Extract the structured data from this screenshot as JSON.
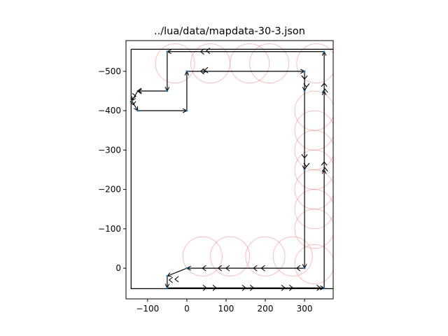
{
  "chart_data": {
    "type": "line",
    "title": "../lua/data/mapdata-30-3.json",
    "xlabel": "",
    "ylabel": "",
    "xlim": [
      -155,
      373
    ],
    "ylim": [
      78,
      -578
    ],
    "y_inverted": true,
    "grid": false,
    "x_ticks": [
      -100,
      0,
      100,
      200,
      300
    ],
    "x_tick_labels": [
      "−100",
      "0",
      "100",
      "200",
      "300"
    ],
    "y_ticks": [
      0,
      -100,
      -200,
      -300,
      -400,
      -500
    ],
    "y_tick_labels": [
      "0",
      "−100",
      "−200",
      "−300",
      "−400",
      "−500"
    ],
    "colors": {
      "path": "#000000",
      "circle": "#f08080",
      "node": "#1f77b4"
    },
    "boundary": [
      [
        -142,
        -556
      ],
      [
        375,
        -556
      ],
      [
        375,
        52
      ],
      [
        -142,
        52
      ],
      [
        -142,
        -556
      ]
    ],
    "circles": [
      {
        "cx": -30,
        "cy": -520,
        "r": 50
      },
      {
        "cx": 60,
        "cy": -520,
        "r": 50
      },
      {
        "cx": 160,
        "cy": -520,
        "r": 50
      },
      {
        "cx": 210,
        "cy": -520,
        "r": 50
      },
      {
        "cx": 330,
        "cy": -520,
        "r": 50
      },
      {
        "cx": 325,
        "cy": -400,
        "r": 50
      },
      {
        "cx": 325,
        "cy": -350,
        "r": 50
      },
      {
        "cx": 325,
        "cy": -300,
        "r": 50
      },
      {
        "cx": 325,
        "cy": -250,
        "r": 50
      },
      {
        "cx": 325,
        "cy": -200,
        "r": 50
      },
      {
        "cx": 325,
        "cy": -150,
        "r": 50
      },
      {
        "cx": 325,
        "cy": -100,
        "r": 50
      },
      {
        "cx": 325,
        "cy": -10,
        "r": 50
      },
      {
        "cx": 40,
        "cy": -30,
        "r": 50
      },
      {
        "cx": 110,
        "cy": -30,
        "r": 50
      },
      {
        "cx": 200,
        "cy": -30,
        "r": 50
      },
      {
        "cx": 270,
        "cy": -30,
        "r": 50
      }
    ],
    "route_arrows": [
      {
        "from": [
          350,
          -550
        ],
        "to": [
          -50,
          -550
        ]
      },
      {
        "from": [
          -50,
          -550
        ],
        "to": [
          -50,
          -450
        ]
      },
      {
        "from": [
          -50,
          -450
        ],
        "to": [
          -125,
          -450
        ]
      },
      {
        "from": [
          -125,
          -450
        ],
        "to": [
          -140,
          -425
        ]
      },
      {
        "from": [
          -140,
          -425
        ],
        "to": [
          -125,
          -400
        ]
      },
      {
        "from": [
          -125,
          -400
        ],
        "to": [
          0,
          -400
        ]
      },
      {
        "from": [
          0,
          -400
        ],
        "to": [
          0,
          -500
        ]
      },
      {
        "from": [
          0,
          -500
        ],
        "to": [
          50,
          -500
        ]
      },
      {
        "from": [
          50,
          -500
        ],
        "to": [
          300,
          -500
        ]
      },
      {
        "from": [
          300,
          -500
        ],
        "to": [
          300,
          -450
        ]
      },
      {
        "from": [
          300,
          -450
        ],
        "to": [
          300,
          -250
        ]
      },
      {
        "from": [
          300,
          -250
        ],
        "to": [
          300,
          0
        ]
      },
      {
        "from": [
          300,
          0
        ],
        "to": [
          0,
          0
        ]
      },
      {
        "from": [
          0,
          0
        ],
        "to": [
          -50,
          20
        ]
      },
      {
        "from": [
          -50,
          20
        ],
        "to": [
          -50,
          50
        ]
      },
      {
        "from": [
          -50,
          50
        ],
        "to": [
          350,
          50
        ]
      },
      {
        "from": [
          350,
          50
        ],
        "to": [
          350,
          -250
        ]
      },
      {
        "from": [
          350,
          -250
        ],
        "to": [
          350,
          -450
        ]
      },
      {
        "from": [
          350,
          -450
        ],
        "to": [
          350,
          -550
        ]
      }
    ],
    "node_chevrons": [
      {
        "x": 35,
        "y": -550,
        "d": "left"
      },
      {
        "x": 50,
        "y": -552,
        "d": "left"
      },
      {
        "x": -125,
        "y": -450,
        "d": "left"
      },
      {
        "x": -130,
        "y": -437,
        "d": "right"
      },
      {
        "x": -137,
        "y": -415,
        "d": "down"
      },
      {
        "x": 35,
        "y": -500,
        "d": "left"
      },
      {
        "x": 45,
        "y": -503,
        "d": "left"
      },
      {
        "x": 300,
        "y": -480,
        "d": "down"
      },
      {
        "x": 305,
        "y": -460,
        "d": "down"
      },
      {
        "x": 300,
        "y": -280,
        "d": "down"
      },
      {
        "x": 305,
        "y": -258,
        "d": "down"
      },
      {
        "x": 350,
        "y": -470,
        "d": "up"
      },
      {
        "x": 352,
        "y": -455,
        "d": "up"
      },
      {
        "x": 350,
        "y": -270,
        "d": "up"
      },
      {
        "x": 352,
        "y": -255,
        "d": "up"
      },
      {
        "x": 280,
        "y": 0,
        "d": "left"
      },
      {
        "x": 190,
        "y": 0,
        "d": "left"
      },
      {
        "x": 170,
        "y": 0,
        "d": "left"
      },
      {
        "x": 100,
        "y": 0,
        "d": "left"
      },
      {
        "x": 80,
        "y": 0,
        "d": "left"
      },
      {
        "x": 40,
        "y": 0,
        "d": "left"
      },
      {
        "x": -30,
        "y": 28,
        "d": "left"
      },
      {
        "x": -45,
        "y": 30,
        "d": "left"
      },
      {
        "x": 50,
        "y": 50,
        "d": "right"
      },
      {
        "x": 75,
        "y": 50,
        "d": "right"
      },
      {
        "x": 150,
        "y": 50,
        "d": "right"
      },
      {
        "x": 170,
        "y": 50,
        "d": "right"
      },
      {
        "x": 250,
        "y": 50,
        "d": "right"
      },
      {
        "x": 270,
        "y": 50,
        "d": "right"
      },
      {
        "x": 340,
        "y": 50,
        "d": "right"
      }
    ]
  }
}
